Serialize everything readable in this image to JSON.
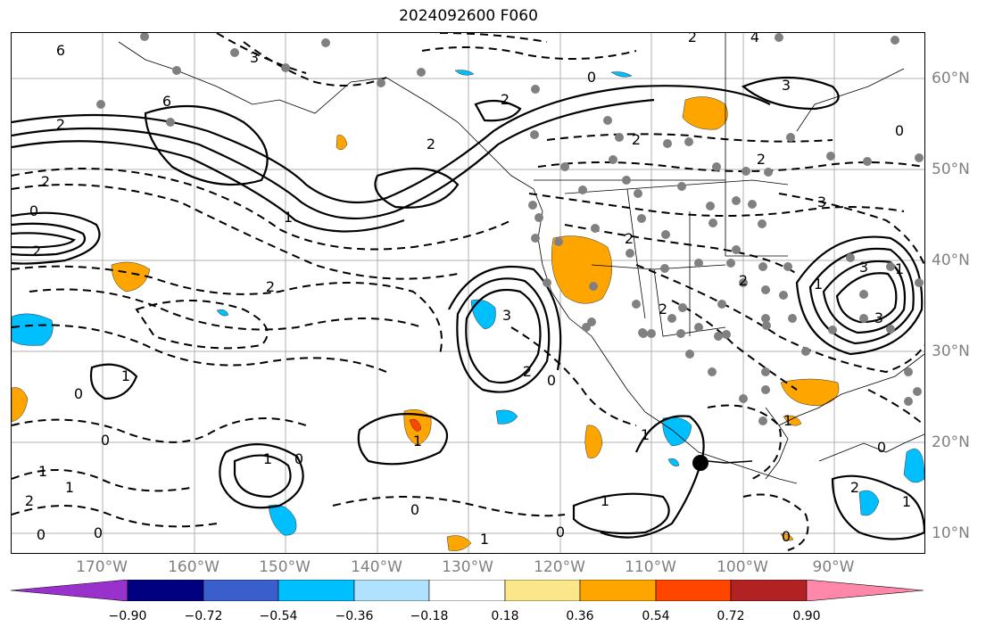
{
  "title": "2024092600 F060",
  "longitude_labels": [
    "170°W",
    "160°W",
    "150°W",
    "140°W",
    "130°W",
    "120°W",
    "110°W",
    "100°W",
    "90°W"
  ],
  "latitude_labels": [
    "60°N",
    "50°N",
    "40°N",
    "30°N",
    "20°N",
    "10°N"
  ],
  "colorbar": {
    "ticks": [
      "−0.90",
      "−0.72",
      "−0.54",
      "−0.36",
      "−0.18",
      "0.18",
      "0.36",
      "0.54",
      "0.72",
      "0.90"
    ],
    "colors": [
      "#9932cc",
      "#000080",
      "#3a5fcd",
      "#00bfff",
      "#b0e2ff",
      "#ffffff",
      "#fbe68a",
      "#ffa500",
      "#ff4500",
      "#b22222",
      "#ff88aa"
    ]
  },
  "contour_labels": [
    "6",
    "3",
    "6",
    "2",
    "2",
    "1",
    "2",
    "0",
    "2",
    "1",
    "0",
    "2",
    "2",
    "0",
    "3",
    "2",
    "4",
    "2",
    "3",
    "0",
    "2",
    "3",
    "3",
    "1",
    "3",
    "2",
    "2",
    "2",
    "2",
    "1",
    "0",
    "1",
    "1",
    "0",
    "0",
    "0",
    "1",
    "2",
    "1",
    "0",
    "1",
    "1",
    "0",
    "0",
    "1",
    "1",
    "0",
    "1",
    "2",
    "0"
  ],
  "markers": {
    "station_color": "#808080",
    "storm_center_color": "#000000"
  }
}
